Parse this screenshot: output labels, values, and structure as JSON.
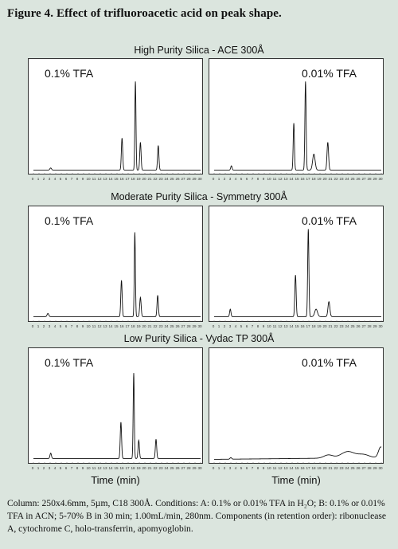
{
  "figure_title": "Figure 4. Effect of trifluoroacetic acid on peak shape.",
  "x_axis_label": "Time (min)",
  "caption": "Column: 250x4.6mm, 5µm, C18 300Å. Conditions:  A: 0.1% or 0.01% TFA in H₂O; B: 0.1% or 0.01% TFA in ACN; 5-70% B in 30 min; 1.00mL/min, 280nm. Components (in retention order): ribonuclease A, cytochrome C, holo-transferrin, apomyoglobin.",
  "colors": {
    "background": "#dbe5de",
    "panel": "#ffffff",
    "trace": "#111111"
  },
  "chart_data": [
    {
      "type": "line",
      "row_title": "High Purity Silica - ACE 300Å",
      "label": "0.1% TFA",
      "xlim": [
        0,
        30
      ],
      "ylim": [
        0,
        1
      ],
      "x_ticks": [
        0,
        1,
        2,
        3,
        4,
        5,
        6,
        7,
        8,
        9,
        10,
        11,
        12,
        13,
        14,
        15,
        16,
        17,
        18,
        19,
        20,
        21,
        22,
        23,
        24,
        25,
        26,
        27,
        28,
        29,
        30
      ],
      "peaks": [
        {
          "t": 3.1,
          "h": 0.02,
          "w": 0.15
        },
        {
          "t": 15.9,
          "h": 0.3,
          "w": 0.12
        },
        {
          "t": 18.3,
          "h": 0.83,
          "w": 0.1
        },
        {
          "t": 19.2,
          "h": 0.26,
          "w": 0.12
        },
        {
          "t": 22.4,
          "h": 0.23,
          "w": 0.12
        }
      ],
      "drift": [
        0.004,
        0.004
      ]
    },
    {
      "type": "line",
      "row_title": "High Purity Silica - ACE 300Å",
      "label": "0.01% TFA",
      "xlim": [
        0,
        30
      ],
      "ylim": [
        0,
        1
      ],
      "x_ticks": [
        0,
        1,
        2,
        3,
        4,
        5,
        6,
        7,
        8,
        9,
        10,
        11,
        12,
        13,
        14,
        15,
        16,
        17,
        18,
        19,
        20,
        21,
        22,
        23,
        24,
        25,
        26,
        27,
        28,
        29,
        30
      ],
      "peaks": [
        {
          "t": 3.1,
          "h": 0.04,
          "w": 0.12
        },
        {
          "t": 14.3,
          "h": 0.44,
          "w": 0.11
        },
        {
          "t": 16.4,
          "h": 0.83,
          "w": 0.11
        },
        {
          "t": 17.9,
          "h": 0.15,
          "w": 0.22
        },
        {
          "t": 20.4,
          "h": 0.26,
          "w": 0.14
        }
      ],
      "drift": [
        0.004,
        0.004
      ]
    },
    {
      "type": "line",
      "row_title": "Moderate Purity Silica - Symmetry 300Å",
      "label": "0.1% TFA",
      "xlim": [
        0,
        30
      ],
      "ylim": [
        0,
        1
      ],
      "x_ticks": [
        0,
        1,
        2,
        3,
        4,
        5,
        6,
        7,
        8,
        9,
        10,
        11,
        12,
        13,
        14,
        15,
        16,
        17,
        18,
        19,
        20,
        21,
        22,
        23,
        24,
        25,
        26,
        27,
        28,
        29,
        30
      ],
      "peaks": [
        {
          "t": 2.6,
          "h": 0.03,
          "w": 0.15
        },
        {
          "t": 15.8,
          "h": 0.34,
          "w": 0.12
        },
        {
          "t": 18.2,
          "h": 0.79,
          "w": 0.1
        },
        {
          "t": 19.2,
          "h": 0.18,
          "w": 0.13
        },
        {
          "t": 22.3,
          "h": 0.2,
          "w": 0.12
        }
      ],
      "drift": [
        0.012,
        0.012
      ]
    },
    {
      "type": "line",
      "row_title": "Moderate Purity Silica - Symmetry 300Å",
      "label": "0.01% TFA",
      "xlim": [
        0,
        30
      ],
      "ylim": [
        0,
        1
      ],
      "x_ticks": [
        0,
        1,
        2,
        3,
        4,
        5,
        6,
        7,
        8,
        9,
        10,
        11,
        12,
        13,
        14,
        15,
        16,
        17,
        18,
        19,
        20,
        21,
        22,
        23,
        24,
        25,
        26,
        27,
        28,
        29,
        30
      ],
      "peaks": [
        {
          "t": 2.9,
          "h": 0.07,
          "w": 0.12
        },
        {
          "t": 14.6,
          "h": 0.39,
          "w": 0.12
        },
        {
          "t": 16.9,
          "h": 0.82,
          "w": 0.11
        },
        {
          "t": 18.3,
          "h": 0.07,
          "w": 0.25
        },
        {
          "t": 20.6,
          "h": 0.14,
          "w": 0.17
        }
      ],
      "drift": [
        0.012,
        0.012
      ]
    },
    {
      "type": "line",
      "row_title": "Low Purity Silica - Vydac TP 300Å",
      "label": "0.1% TFA",
      "xlim": [
        0,
        30
      ],
      "ylim": [
        0,
        1
      ],
      "x_ticks": [
        0,
        1,
        2,
        3,
        4,
        5,
        6,
        7,
        8,
        9,
        10,
        11,
        12,
        13,
        14,
        15,
        16,
        17,
        18,
        19,
        20,
        21,
        22,
        23,
        24,
        25,
        26,
        27,
        28,
        29,
        30
      ],
      "peaks": [
        {
          "t": 3.1,
          "h": 0.05,
          "w": 0.13
        },
        {
          "t": 15.7,
          "h": 0.34,
          "w": 0.12
        },
        {
          "t": 18.0,
          "h": 0.8,
          "w": 0.1
        },
        {
          "t": 18.9,
          "h": 0.17,
          "w": 0.12
        },
        {
          "t": 22.0,
          "h": 0.18,
          "w": 0.12
        }
      ],
      "drift": [
        0.012,
        0.012
      ]
    },
    {
      "type": "line",
      "row_title": "Low Purity Silica - Vydac TP 300Å",
      "label": "0.01% TFA",
      "xlim": [
        0,
        30
      ],
      "ylim": [
        0,
        1
      ],
      "x_ticks": [
        0,
        1,
        2,
        3,
        4,
        5,
        6,
        7,
        8,
        9,
        10,
        11,
        12,
        13,
        14,
        15,
        16,
        17,
        18,
        19,
        20,
        21,
        22,
        23,
        24,
        25,
        26,
        27,
        28,
        29,
        30
      ],
      "peaks": [
        {
          "t": 3.0,
          "h": 0.015,
          "w": 0.15
        },
        {
          "t": 20.5,
          "h": 0.03,
          "w": 0.8
        },
        {
          "t": 24.0,
          "h": 0.06,
          "w": 1.2
        },
        {
          "t": 26.8,
          "h": 0.03,
          "w": 1.0
        },
        {
          "t": 29.9,
          "h": 0.1,
          "w": 0.4
        }
      ],
      "drift": [
        0.004,
        0.02
      ]
    }
  ]
}
